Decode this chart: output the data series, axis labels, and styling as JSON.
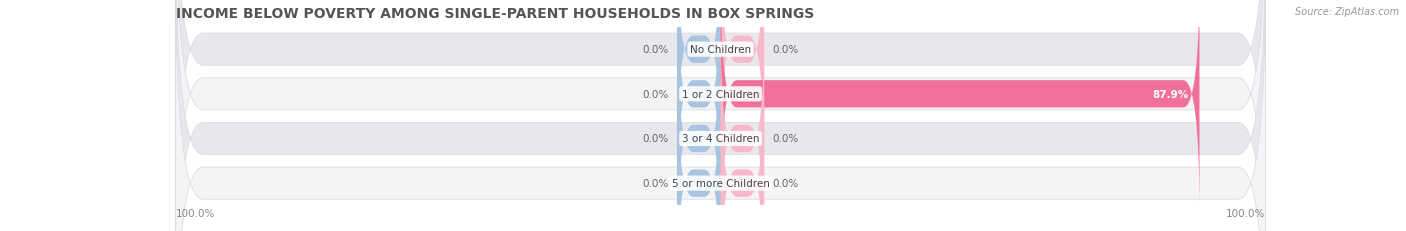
{
  "title": "INCOME BELOW POVERTY AMONG SINGLE-PARENT HOUSEHOLDS IN BOX SPRINGS",
  "source": "Source: ZipAtlas.com",
  "categories": [
    "No Children",
    "1 or 2 Children",
    "3 or 4 Children",
    "5 or more Children"
  ],
  "single_father": [
    0.0,
    0.0,
    0.0,
    0.0
  ],
  "single_mother": [
    0.0,
    87.9,
    0.0,
    0.0
  ],
  "father_color": "#a8c4e0",
  "mother_color_small": "#f7b8cb",
  "mother_color_large": "#f0709a",
  "row_color_dark": "#e8e8ec",
  "row_color_light": "#f4f4f6",
  "row_outline": "#d8d8de",
  "axis_label_left": "100.0%",
  "axis_label_right": "100.0%",
  "title_fontsize": 10,
  "source_fontsize": 7,
  "label_fontsize": 7.5,
  "cat_fontsize": 7.5,
  "legend_fontsize": 7.5,
  "figsize": [
    14.06,
    2.32
  ],
  "dpi": 100,
  "xlim": [
    -100,
    100
  ],
  "background_color": "#ffffff"
}
